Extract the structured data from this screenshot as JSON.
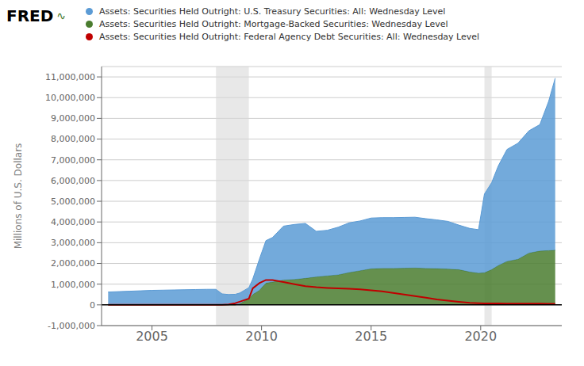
{
  "chart_data": {
    "type": "area",
    "title": "FRED",
    "annotations": [
      {
        "text": "∿",
        "color": "#4a7c2f"
      }
    ],
    "y_label": "Millions of U.S. Dollars",
    "x": [
      2003.0,
      2003.5,
      2004.0,
      2004.5,
      2005.0,
      2005.5,
      2006.0,
      2006.5,
      2007.0,
      2007.5,
      2007.92,
      2008.2,
      2008.5,
      2008.8,
      2009.0,
      2009.42,
      2009.6,
      2009.9,
      2010.2,
      2010.5,
      2011.0,
      2011.5,
      2012.0,
      2012.5,
      2013.0,
      2013.5,
      2014.0,
      2014.5,
      2015.0,
      2015.5,
      2016.0,
      2016.5,
      2017.0,
      2017.5,
      2018.0,
      2018.5,
      2019.0,
      2019.5,
      2019.9,
      2020.17,
      2020.5,
      2020.8,
      2021.2,
      2021.7,
      2022.2,
      2022.7,
      2023.1,
      2023.4
    ],
    "series": [
      {
        "name": "Assets: Securities Held Outright: U.S. Treasury Securities: All: Wednesday Level",
        "color": "#5b9bd5",
        "type": "area",
        "values": [
          620000,
          640000,
          660000,
          680000,
          700000,
          710000,
          720000,
          730000,
          740000,
          750000,
          750000,
          530000,
          500000,
          510000,
          520000,
          530000,
          750000,
          1500000,
          2050000,
          2150000,
          2600000,
          2650000,
          2650000,
          2200000,
          2200000,
          2300000,
          2400000,
          2400000,
          2450000,
          2450000,
          2450000,
          2450000,
          2450000,
          2400000,
          2350000,
          2300000,
          2150000,
          2100000,
          2100000,
          3800000,
          4200000,
          4800000,
          5400000,
          5600000,
          5900000,
          6100000,
          7200000,
          8300000
        ]
      },
      {
        "name": "Assets: Securities Held Outright: Mortgage-Backed Securities: Wednesday Level",
        "color": "#4a7c2f",
        "type": "area",
        "values": [
          0,
          0,
          0,
          0,
          0,
          0,
          0,
          0,
          0,
          0,
          0,
          0,
          0,
          0,
          50000,
          300000,
          500000,
          700000,
          1050000,
          1100000,
          1200000,
          1230000,
          1280000,
          1350000,
          1400000,
          1450000,
          1560000,
          1650000,
          1740000,
          1760000,
          1760000,
          1770000,
          1780000,
          1760000,
          1750000,
          1730000,
          1700000,
          1590000,
          1530000,
          1550000,
          1700000,
          1900000,
          2100000,
          2200000,
          2500000,
          2600000,
          2620000,
          2640000
        ]
      },
      {
        "name": "Assets: Securities Held Outright: Federal Agency Debt Securities: All: Wednesday Level",
        "color": "#c00000",
        "type": "line",
        "values": [
          0,
          0,
          0,
          0,
          0,
          0,
          0,
          0,
          0,
          0,
          0,
          0,
          20000,
          80000,
          150000,
          300000,
          800000,
          1050000,
          1200000,
          1200000,
          1100000,
          1000000,
          900000,
          850000,
          820000,
          800000,
          780000,
          750000,
          700000,
          650000,
          580000,
          500000,
          420000,
          350000,
          260000,
          200000,
          150000,
          100000,
          80000,
          70000,
          68000,
          66000,
          64000,
          62000,
          60000,
          58000,
          56000,
          54000
        ]
      }
    ],
    "stacked": true,
    "recession_bands": [
      {
        "from": 2007.92,
        "to": 2009.42,
        "color": "#d8d8d8"
      },
      {
        "from": 2020.17,
        "to": 2020.5,
        "color": "#d8d8d8"
      }
    ],
    "reference_lines": [
      {
        "y": 0,
        "color": "#000000"
      }
    ],
    "xlim": [
      2002.7,
      2023.7
    ],
    "xticks": [
      2005,
      2010,
      2015,
      2020
    ],
    "ylim": [
      -1000000,
      11500000
    ],
    "yticks": [
      {
        "value": -1000000,
        "label": "-1,000,000"
      },
      0,
      {
        "value": 1000000,
        "label": "1,000,000"
      },
      {
        "value": 2000000,
        "label": "2,000,000"
      },
      {
        "value": 3000000,
        "label": "3,000,000"
      },
      {
        "value": 4000000,
        "label": "4,000,000"
      },
      {
        "value": 5000000,
        "label": "5,000,000"
      },
      {
        "value": 6000000,
        "label": "6,000,000"
      },
      {
        "value": 7000000,
        "label": "7,000,000"
      },
      {
        "value": 8000000,
        "label": "8,000,000"
      },
      {
        "value": 9000000,
        "label": "9,000,000"
      },
      {
        "value": 10000000,
        "label": "10,000,000"
      },
      {
        "value": 11000000,
        "label": "11,000,000"
      }
    ],
    "grid": true,
    "legend": "top"
  }
}
